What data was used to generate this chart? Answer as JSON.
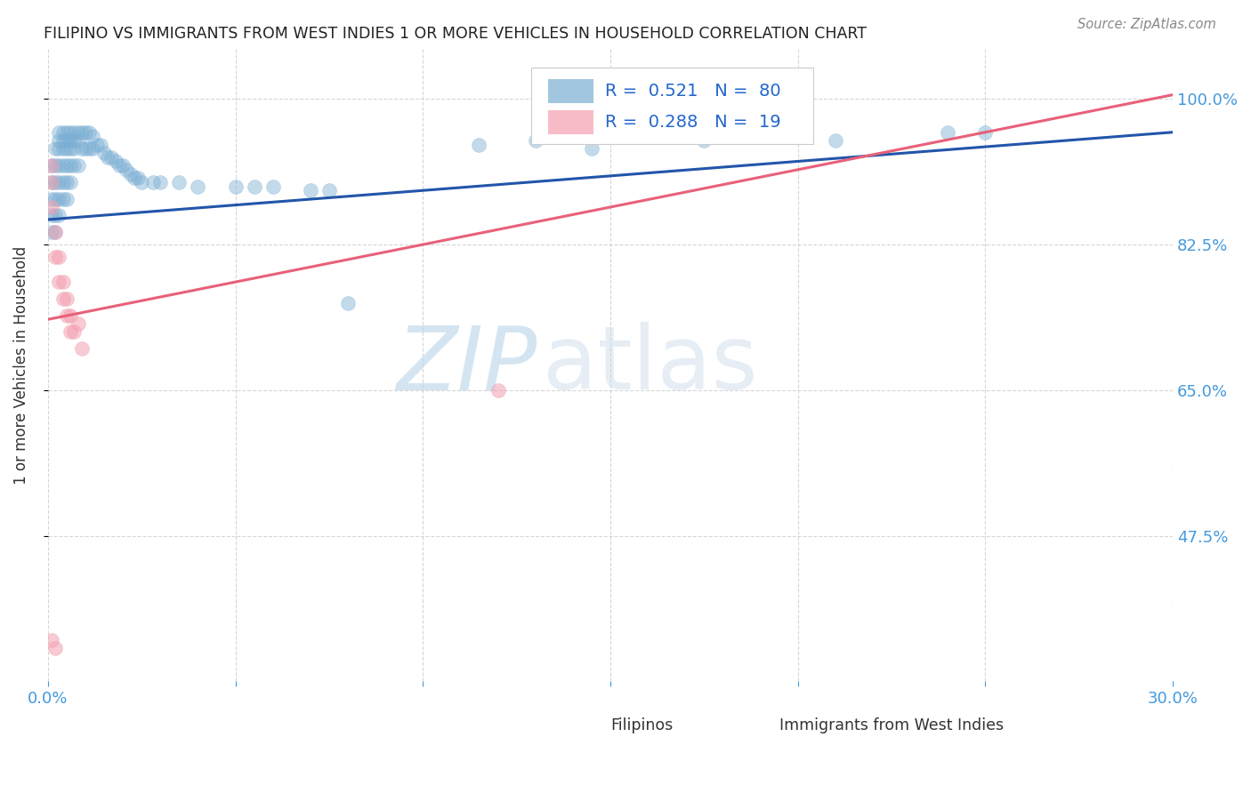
{
  "title": "FILIPINO VS IMMIGRANTS FROM WEST INDIES 1 OR MORE VEHICLES IN HOUSEHOLD CORRELATION CHART",
  "source": "Source: ZipAtlas.com",
  "ylabel": "1 or more Vehicles in Household",
  "ytick_labels": [
    "100.0%",
    "82.5%",
    "65.0%",
    "47.5%"
  ],
  "ytick_values": [
    1.0,
    0.825,
    0.65,
    0.475
  ],
  "xlim": [
    0.0,
    0.3
  ],
  "ylim": [
    0.3,
    1.06
  ],
  "legend1_R": "0.521",
  "legend1_N": "80",
  "legend2_R": "0.288",
  "legend2_N": "19",
  "blue_color": "#7BAFD4",
  "pink_color": "#F4A0B0",
  "blue_line_color": "#2255AA",
  "pink_line_color": "#E8607A",
  "blue_line_x0": 0.0,
  "blue_line_y0": 0.855,
  "blue_line_x1": 0.3,
  "blue_line_y1": 0.96,
  "pink_line_x0": 0.0,
  "pink_line_y0": 0.735,
  "pink_line_x1": 0.3,
  "pink_line_y1": 1.005,
  "blue_scatter_x": [
    0.001,
    0.001,
    0.001,
    0.001,
    0.001,
    0.002,
    0.002,
    0.002,
    0.002,
    0.002,
    0.002,
    0.003,
    0.003,
    0.003,
    0.003,
    0.003,
    0.003,
    0.003,
    0.004,
    0.004,
    0.004,
    0.004,
    0.004,
    0.004,
    0.005,
    0.005,
    0.005,
    0.005,
    0.005,
    0.005,
    0.006,
    0.006,
    0.006,
    0.006,
    0.006,
    0.007,
    0.007,
    0.007,
    0.007,
    0.008,
    0.008,
    0.008,
    0.009,
    0.009,
    0.01,
    0.01,
    0.011,
    0.011,
    0.012,
    0.012,
    0.013,
    0.014,
    0.015,
    0.016,
    0.017,
    0.018,
    0.019,
    0.02,
    0.021,
    0.022,
    0.023,
    0.024,
    0.025,
    0.028,
    0.03,
    0.035,
    0.04,
    0.05,
    0.055,
    0.06,
    0.07,
    0.075,
    0.08,
    0.115,
    0.13,
    0.145,
    0.175,
    0.21,
    0.24,
    0.25
  ],
  "blue_scatter_y": [
    0.92,
    0.9,
    0.88,
    0.86,
    0.84,
    0.94,
    0.92,
    0.9,
    0.88,
    0.86,
    0.84,
    0.96,
    0.95,
    0.94,
    0.92,
    0.9,
    0.88,
    0.86,
    0.96,
    0.95,
    0.94,
    0.92,
    0.9,
    0.88,
    0.96,
    0.95,
    0.94,
    0.92,
    0.9,
    0.88,
    0.96,
    0.95,
    0.94,
    0.92,
    0.9,
    0.96,
    0.95,
    0.94,
    0.92,
    0.96,
    0.95,
    0.92,
    0.96,
    0.94,
    0.96,
    0.94,
    0.96,
    0.94,
    0.955,
    0.94,
    0.945,
    0.945,
    0.935,
    0.93,
    0.93,
    0.925,
    0.92,
    0.92,
    0.915,
    0.91,
    0.905,
    0.905,
    0.9,
    0.9,
    0.9,
    0.9,
    0.895,
    0.895,
    0.895,
    0.895,
    0.89,
    0.89,
    0.755,
    0.945,
    0.95,
    0.94,
    0.95,
    0.95,
    0.96,
    0.96
  ],
  "pink_scatter_x": [
    0.001,
    0.001,
    0.001,
    0.002,
    0.002,
    0.003,
    0.003,
    0.004,
    0.004,
    0.005,
    0.005,
    0.006,
    0.006,
    0.007,
    0.008,
    0.009,
    0.12,
    0.001,
    0.002
  ],
  "pink_scatter_y": [
    0.92,
    0.9,
    0.87,
    0.84,
    0.81,
    0.81,
    0.78,
    0.78,
    0.76,
    0.76,
    0.74,
    0.74,
    0.72,
    0.72,
    0.73,
    0.7,
    0.65,
    0.35,
    0.34
  ],
  "watermark_zip": "ZIP",
  "watermark_atlas": "atlas",
  "grid_color": "#CCCCCC",
  "bg_color": "#FFFFFF"
}
